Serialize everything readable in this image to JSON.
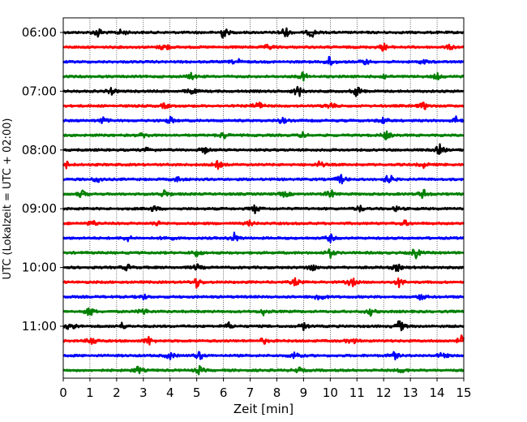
{
  "chart_data": {
    "type": "line",
    "subtype": "helicorder",
    "xlabel": "Zeit  [min]",
    "ylabel": "UTC (Lokalzeit = UTC + 02:00)",
    "xlim": [
      0,
      15
    ],
    "x_ticks": [
      "0",
      "1",
      "2",
      "3",
      "4",
      "5",
      "6",
      "7",
      "8",
      "9",
      "10",
      "11",
      "12",
      "13",
      "14",
      "15"
    ],
    "grid": "vertical dotted",
    "trace_interval_minutes": 15,
    "traces": [
      {
        "start": "06:00",
        "color": "#000000",
        "label": "06:00"
      },
      {
        "start": "06:15",
        "color": "#ff0000",
        "label": ""
      },
      {
        "start": "06:30",
        "color": "#0000ff",
        "label": ""
      },
      {
        "start": "06:45",
        "color": "#008000",
        "label": ""
      },
      {
        "start": "07:00",
        "color": "#000000",
        "label": "07:00"
      },
      {
        "start": "07:15",
        "color": "#ff0000",
        "label": ""
      },
      {
        "start": "07:30",
        "color": "#0000ff",
        "label": ""
      },
      {
        "start": "07:45",
        "color": "#008000",
        "label": ""
      },
      {
        "start": "08:00",
        "color": "#000000",
        "label": "08:00"
      },
      {
        "start": "08:15",
        "color": "#ff0000",
        "label": ""
      },
      {
        "start": "08:30",
        "color": "#0000ff",
        "label": ""
      },
      {
        "start": "08:45",
        "color": "#008000",
        "label": ""
      },
      {
        "start": "09:00",
        "color": "#000000",
        "label": "09:00"
      },
      {
        "start": "09:15",
        "color": "#ff0000",
        "label": ""
      },
      {
        "start": "09:30",
        "color": "#0000ff",
        "label": ""
      },
      {
        "start": "09:45",
        "color": "#008000",
        "label": ""
      },
      {
        "start": "10:00",
        "color": "#000000",
        "label": "10:00"
      },
      {
        "start": "10:15",
        "color": "#ff0000",
        "label": ""
      },
      {
        "start": "10:30",
        "color": "#0000ff",
        "label": ""
      },
      {
        "start": "10:45",
        "color": "#008000",
        "label": ""
      },
      {
        "start": "11:00",
        "color": "#000000",
        "label": "11:00"
      },
      {
        "start": "11:15",
        "color": "#ff0000",
        "label": ""
      },
      {
        "start": "11:30",
        "color": "#0000ff",
        "label": ""
      },
      {
        "start": "11:45",
        "color": "#008000",
        "label": ""
      }
    ],
    "events": [
      [
        [
          1.3,
          0.8
        ],
        [
          2.2,
          0.6
        ],
        [
          6.0,
          1.0
        ],
        [
          8.3,
          1.0
        ],
        [
          9.3,
          0.8
        ]
      ],
      [
        [
          3.8,
          0.8
        ],
        [
          7.7,
          0.5
        ],
        [
          12.0,
          0.6
        ],
        [
          14.5,
          0.4
        ]
      ],
      [
        [
          6.5,
          0.6
        ],
        [
          10.0,
          1.0
        ],
        [
          11.3,
          0.5
        ],
        [
          13.5,
          0.4
        ]
      ],
      [
        [
          4.8,
          0.5
        ],
        [
          9.0,
          0.7
        ],
        [
          12.0,
          0.4
        ],
        [
          14.0,
          0.5
        ]
      ],
      [
        [
          1.8,
          0.5
        ],
        [
          4.8,
          0.6
        ],
        [
          8.8,
          1.0
        ],
        [
          11.0,
          0.9
        ]
      ],
      [
        [
          3.8,
          0.4
        ],
        [
          7.3,
          0.8
        ],
        [
          10.0,
          0.7
        ],
        [
          13.5,
          0.6
        ]
      ],
      [
        [
          1.5,
          0.5
        ],
        [
          4.0,
          0.6
        ],
        [
          8.2,
          0.5
        ],
        [
          12.0,
          0.5
        ],
        [
          14.7,
          0.6
        ]
      ],
      [
        [
          3.0,
          0.5
        ],
        [
          6.0,
          0.6
        ],
        [
          9.0,
          0.5
        ],
        [
          12.1,
          0.7
        ]
      ],
      [
        [
          3.2,
          0.5
        ],
        [
          5.3,
          0.5
        ],
        [
          14.1,
          0.9
        ]
      ],
      [
        [
          0.1,
          0.6
        ],
        [
          5.8,
          0.6
        ],
        [
          9.6,
          0.5
        ],
        [
          13.5,
          0.4
        ]
      ],
      [
        [
          1.3,
          0.6
        ],
        [
          4.3,
          0.4
        ],
        [
          10.4,
          0.8
        ],
        [
          12.2,
          0.9
        ]
      ],
      [
        [
          0.7,
          0.6
        ],
        [
          3.8,
          0.7
        ],
        [
          8.3,
          0.5
        ],
        [
          10.0,
          0.8
        ],
        [
          13.5,
          0.8
        ]
      ],
      [
        [
          3.4,
          0.5
        ],
        [
          7.2,
          0.7
        ],
        [
          11.1,
          0.5
        ],
        [
          12.5,
          0.4
        ]
      ],
      [
        [
          1.1,
          0.5
        ],
        [
          3.5,
          0.4
        ],
        [
          7.0,
          0.4
        ],
        [
          12.8,
          0.4
        ]
      ],
      [
        [
          2.4,
          0.5
        ],
        [
          3.9,
          0.6
        ],
        [
          6.4,
          0.8
        ],
        [
          10.0,
          0.6
        ]
      ],
      [
        [
          5.0,
          0.6
        ],
        [
          10.0,
          0.7
        ],
        [
          13.2,
          0.9
        ]
      ],
      [
        [
          2.4,
          0.5
        ],
        [
          5.0,
          0.5
        ],
        [
          9.3,
          0.7
        ],
        [
          12.5,
          0.6
        ]
      ],
      [
        [
          5.0,
          0.9
        ],
        [
          8.7,
          0.6
        ],
        [
          10.8,
          0.8
        ],
        [
          12.6,
          0.8
        ]
      ],
      [
        [
          3.0,
          0.4
        ],
        [
          9.6,
          1.0
        ],
        [
          13.4,
          0.5
        ]
      ],
      [
        [
          1.0,
          0.8
        ],
        [
          3.0,
          0.6
        ],
        [
          7.5,
          0.5
        ],
        [
          11.5,
          0.6
        ]
      ],
      [
        [
          0.3,
          0.9
        ],
        [
          2.2,
          0.5
        ],
        [
          6.2,
          0.5
        ],
        [
          9.0,
          0.5
        ],
        [
          12.6,
          1.0
        ]
      ],
      [
        [
          1.1,
          0.8
        ],
        [
          3.2,
          0.7
        ],
        [
          7.5,
          0.5
        ],
        [
          10.8,
          0.6
        ],
        [
          14.9,
          0.8
        ]
      ],
      [
        [
          4.0,
          0.6
        ],
        [
          5.1,
          0.7
        ],
        [
          8.7,
          0.8
        ],
        [
          12.4,
          0.6
        ],
        [
          14.2,
          0.5
        ]
      ],
      [
        [
          2.8,
          0.6
        ],
        [
          5.1,
          0.6
        ],
        [
          8.8,
          0.5
        ],
        [
          12.7,
          0.4
        ]
      ]
    ]
  }
}
